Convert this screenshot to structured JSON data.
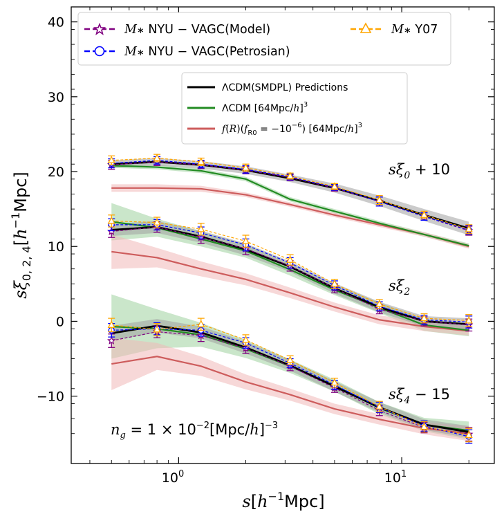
{
  "chart_data": {
    "type": "line",
    "xlabel": "s[h⁻¹Mpc]",
    "ylabel": "sξ0,2,4[h⁻¹Mpc]",
    "xscale": "log",
    "xlim": [
      0.33,
      26
    ],
    "ylim": [
      -19,
      42
    ],
    "x_ticks": [
      1,
      10
    ],
    "x_tick_labels": [
      "10⁰",
      "10¹"
    ],
    "y_ticks": [
      -10,
      0,
      10,
      20,
      30,
      40
    ],
    "y_tick_labels": [
      "−10",
      "0",
      "10",
      "20",
      "30",
      "40"
    ],
    "grid": false,
    "x": [
      0.5,
      0.8,
      1.26,
      2.0,
      3.16,
      5.0,
      7.94,
      12.6,
      20.0
    ],
    "annotations": [
      {
        "text": "sξ₀ + 10",
        "at": [
          6.5,
          20.0
        ]
      },
      {
        "text": "sξ₂",
        "at": [
          9.5,
          4.5
        ]
      },
      {
        "text": "sξ₄ − 15",
        "at": [
          9.5,
          -10
        ]
      },
      {
        "text": "n_g = 1 × 10⁻²[Mpc/h]⁻³",
        "at": [
          0.42,
          -14.5
        ]
      }
    ],
    "legend_top": {
      "placement": "top",
      "entries": [
        {
          "label": "M∗ NYU − VAGC(Model)",
          "color": "#800080",
          "marker": "star",
          "style": "dashed"
        },
        {
          "label": "M∗ NYU − VAGC(Petrosian)",
          "color": "#0000ff",
          "marker": "circle",
          "style": "dashed"
        },
        {
          "label": "M∗ Y07",
          "color": "#ffa500",
          "marker": "triangle",
          "style": "dashed"
        }
      ]
    },
    "legend_model": {
      "placement": "upper-center",
      "entries": [
        {
          "label": "ΛCDM(SMDPL) Predictions",
          "color": "#000000"
        },
        {
          "label": "ΛCDM [64Mpc/h]³",
          "color": "#228b22"
        },
        {
          "label": "f(R)(fR0 = −10⁻⁶) [64Mpc/h]³",
          "color": "#cd5c5c"
        }
      ]
    },
    "groups": [
      {
        "id": "xi0",
        "smdpl": [
          21.0,
          21.3,
          20.9,
          20.2,
          19.1,
          17.8,
          16.1,
          14.2,
          12.4
        ],
        "smdpl_band": [
          0.5,
          0.5,
          0.5,
          0.5,
          0.5,
          0.6,
          0.7,
          0.8,
          0.9
        ],
        "lcdm": [
          20.8,
          20.6,
          20.1,
          19.0,
          16.3,
          14.7,
          13.1,
          11.6,
          10.1
        ],
        "lcdm_band": [
          0.3,
          0.3,
          0.3,
          0.3,
          0.3,
          0.3,
          0.3,
          0.3,
          0.3
        ],
        "fr": [
          17.8,
          17.8,
          17.7,
          16.9,
          15.6,
          14.2,
          12.9,
          11.6,
          10.0
        ],
        "fr_band": [
          0.5,
          0.5,
          0.4,
          0.3,
          0.3,
          0.3,
          0.3,
          0.3,
          0.3
        ],
        "model": {
          "y": [
            20.9,
            21.3,
            20.9,
            20.2,
            19.2,
            17.8,
            16.0,
            14.0,
            12.1
          ],
          "err": [
            0.6,
            0.5,
            0.5,
            0.5,
            0.4,
            0.4,
            0.6,
            0.5,
            0.6
          ]
        },
        "petrosian": {
          "y": [
            21.1,
            21.5,
            21.0,
            20.3,
            19.3,
            17.9,
            16.0,
            14.0,
            12.2
          ],
          "err": [
            0.6,
            0.5,
            0.5,
            0.5,
            0.4,
            0.4,
            0.6,
            0.5,
            0.6
          ]
        },
        "y07": {
          "y": [
            21.5,
            21.8,
            21.3,
            20.5,
            19.4,
            18.0,
            16.2,
            14.2,
            12.3
          ],
          "err": [
            0.6,
            0.5,
            0.5,
            0.5,
            0.4,
            0.4,
            0.6,
            0.5,
            0.6
          ]
        }
      },
      {
        "id": "xi2",
        "smdpl": [
          12.2,
          12.6,
          11.3,
          9.6,
          7.3,
          4.4,
          1.9,
          0.0,
          -0.4
        ],
        "smdpl_band": [
          0.8,
          0.8,
          0.8,
          0.8,
          0.7,
          0.7,
          0.7,
          0.7,
          0.8
        ],
        "lcdm": [
          13.3,
          12.5,
          11.0,
          9.4,
          6.9,
          4.2,
          1.8,
          -0.5,
          -1.2
        ],
        "lcdm_band": [
          2.5,
          1.2,
          1.0,
          0.9,
          0.8,
          0.7,
          0.7,
          0.8,
          0.8
        ],
        "fr": [
          9.3,
          8.5,
          7.0,
          5.6,
          3.8,
          1.9,
          0.2,
          -0.7,
          -1.3
        ],
        "fr_band": [
          2.3,
          1.3,
          1.0,
          0.8,
          0.7,
          0.6,
          0.6,
          0.6,
          0.6
        ],
        "model": {
          "y": [
            12.0,
            12.6,
            11.2,
            9.7,
            7.4,
            4.4,
            1.6,
            0.0,
            -0.5
          ],
          "err": [
            0.8,
            0.7,
            0.8,
            0.8,
            0.7,
            0.6,
            0.6,
            0.6,
            0.8
          ]
        },
        "petrosian": {
          "y": [
            12.9,
            12.9,
            11.8,
            10.2,
            7.8,
            4.8,
            2.0,
            0.2,
            -0.1
          ],
          "err": [
            0.8,
            0.7,
            0.8,
            0.8,
            0.7,
            0.6,
            0.6,
            0.6,
            0.8
          ]
        },
        "y07": {
          "y": [
            13.4,
            13.2,
            12.3,
            10.7,
            8.2,
            5.0,
            2.3,
            0.4,
            0.1
          ],
          "err": [
            0.8,
            0.7,
            0.8,
            0.8,
            0.7,
            0.6,
            0.6,
            0.6,
            0.8
          ]
        }
      },
      {
        "id": "xi4",
        "smdpl": [
          -1.6,
          -0.6,
          -1.5,
          -3.5,
          -5.9,
          -8.7,
          -11.5,
          -13.8,
          -14.8
        ],
        "smdpl_band": [
          1.0,
          0.9,
          0.8,
          0.8,
          0.7,
          0.7,
          0.7,
          0.7,
          0.8
        ],
        "lcdm": [
          -0.7,
          -1.0,
          -1.8,
          -3.7,
          -6.0,
          -8.6,
          -11.6,
          -13.8,
          -14.6
        ],
        "lcdm_band": [
          4.3,
          2.6,
          1.6,
          1.2,
          0.9,
          0.8,
          0.8,
          0.9,
          1.2
        ],
        "fr": [
          -5.7,
          -4.7,
          -6.0,
          -8.1,
          -9.8,
          -11.7,
          -13.1,
          -14.3,
          -15.0
        ],
        "fr_band": [
          3.5,
          1.8,
          1.3,
          1.0,
          0.8,
          0.7,
          0.7,
          0.8,
          1.0
        ],
        "model": {
          "y": [
            -2.6,
            -1.4,
            -1.9,
            -3.6,
            -6.0,
            -8.9,
            -11.9,
            -14.2,
            -15.1
          ],
          "err": [
            0.9,
            0.8,
            0.8,
            0.7,
            0.6,
            0.6,
            0.7,
            0.7,
            0.9
          ]
        },
        "petrosian": {
          "y": [
            -1.2,
            -1.0,
            -1.2,
            -2.9,
            -5.6,
            -8.5,
            -11.5,
            -14.0,
            -15.4
          ],
          "err": [
            0.9,
            0.8,
            0.8,
            0.7,
            0.6,
            0.6,
            0.7,
            0.7,
            0.9
          ]
        },
        "y07": {
          "y": [
            -0.5,
            -1.1,
            -0.4,
            -2.5,
            -5.2,
            -8.2,
            -11.4,
            -14.1,
            -15.2
          ],
          "err": [
            0.9,
            0.8,
            0.8,
            0.7,
            0.6,
            0.6,
            0.7,
            0.7,
            0.9
          ]
        }
      }
    ]
  },
  "colors": {
    "black": "#000000",
    "green": "#228b22",
    "red": "#cd5c5c",
    "band_gray": "#a0a0a0",
    "band_green": "#9fd29f",
    "band_red": "#f0b8b8",
    "purple": "#800080",
    "blue": "#0000ff",
    "orange": "#ffa500"
  }
}
